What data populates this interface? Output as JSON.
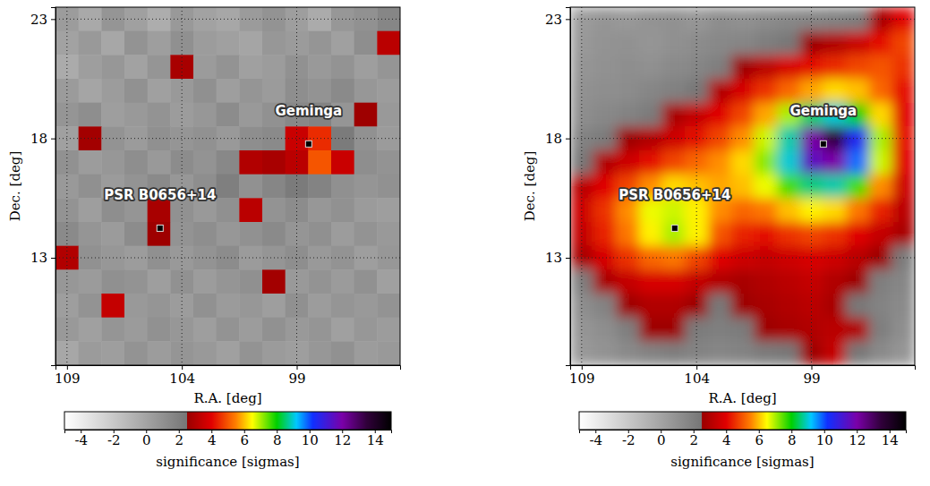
{
  "chart_data": [
    {
      "type": "heatmap",
      "xlabel": "R.A. [deg]",
      "ylabel": "Dec. [deg]",
      "xlim": [
        109.5,
        94.5
      ],
      "ylim": [
        8.5,
        23.5
      ],
      "xticks": [
        109,
        104,
        99
      ],
      "yticks": [
        13,
        18,
        23
      ],
      "grid": true,
      "x": [
        109,
        108,
        107,
        106,
        105,
        104,
        103,
        102,
        101,
        100,
        99,
        98,
        97,
        96,
        95
      ],
      "y": [
        23,
        22,
        21,
        20,
        19,
        18,
        17,
        16,
        15,
        14,
        13,
        12,
        11,
        10,
        9
      ],
      "z": [
        [
          0.4,
          -0.3,
          0.8,
          0.2,
          -0.5,
          0.6,
          0.1,
          -0.2,
          0.5,
          0.9,
          0.3,
          -0.4,
          0.7,
          1.0,
          1.6
        ],
        [
          0.1,
          0.6,
          -0.2,
          0.9,
          0.3,
          1.1,
          0.4,
          0.2,
          -0.1,
          0.7,
          0.5,
          0.8,
          0.2,
          1.2,
          3.2
        ],
        [
          -0.4,
          0.3,
          0.7,
          0.1,
          0.8,
          2.8,
          0.5,
          0.9,
          0.2,
          0.4,
          1.0,
          0.6,
          0.9,
          0.3,
          0.8
        ],
        [
          0.5,
          -0.1,
          0.4,
          1.0,
          0.2,
          0.6,
          1.1,
          0.3,
          0.8,
          0.5,
          1.2,
          0.9,
          1.4,
          0.7,
          0.4
        ],
        [
          0.8,
          1.2,
          0.3,
          0.6,
          0.9,
          0.4,
          0.7,
          1.3,
          0.6,
          1.0,
          1.5,
          1.8,
          0.8,
          2.6,
          0.6
        ],
        [
          0.2,
          2.7,
          0.9,
          0.5,
          1.1,
          0.8,
          1.0,
          0.6,
          1.2,
          1.4,
          3.5,
          4.5,
          2.2,
          1.0,
          0.5
        ],
        [
          1.0,
          0.4,
          0.7,
          1.2,
          0.6,
          1.3,
          0.9,
          1.5,
          3.0,
          2.8,
          3.2,
          5.0,
          3.5,
          1.2,
          0.9
        ],
        [
          0.6,
          1.1,
          0.5,
          0.9,
          1.4,
          0.7,
          1.2,
          2.0,
          1.0,
          1.6,
          2.2,
          1.8,
          1.1,
          0.8,
          1.0
        ],
        [
          0.9,
          0.3,
          1.2,
          0.8,
          2.8,
          1.0,
          0.6,
          1.1,
          3.2,
          0.9,
          1.3,
          0.7,
          1.0,
          0.5,
          0.3
        ],
        [
          1.4,
          0.8,
          0.5,
          1.3,
          2.6,
          0.9,
          1.2,
          0.7,
          1.0,
          1.4,
          0.8,
          1.1,
          0.4,
          0.9,
          0.6
        ],
        [
          3.0,
          1.0,
          0.7,
          0.4,
          1.1,
          0.6,
          0.9,
          1.3,
          0.5,
          0.8,
          1.2,
          0.6,
          0.9,
          0.3,
          0.7
        ],
        [
          0.7,
          0.5,
          1.1,
          0.9,
          0.3,
          1.0,
          0.4,
          0.8,
          1.1,
          2.7,
          0.6,
          0.9,
          0.5,
          1.0,
          0.2
        ],
        [
          0.3,
          0.9,
          3.4,
          0.6,
          0.8,
          0.4,
          1.0,
          0.5,
          0.7,
          0.3,
          1.1,
          0.4,
          0.8,
          0.6,
          0.9
        ],
        [
          0.6,
          0.2,
          0.8,
          0.5,
          1.0,
          0.7,
          0.3,
          0.9,
          0.4,
          1.0,
          0.6,
          0.8,
          0.2,
          0.7,
          0.4
        ],
        [
          -0.2,
          0.5,
          0.3,
          0.9,
          0.4,
          0.8,
          0.6,
          0.2,
          0.9,
          0.5,
          0.3,
          0.7,
          1.0,
          0.4,
          0.6
        ]
      ],
      "annotations": [
        {
          "text": "Geminga",
          "x": 98.48,
          "y": 17.77
        },
        {
          "text": "PSR B0656+14",
          "x": 104.95,
          "y": 14.24
        }
      ],
      "colorbar": {
        "label": "significance [sigmas]",
        "range": [
          -5,
          15
        ],
        "ticks": [
          -4,
          -2,
          0,
          2,
          4,
          6,
          8,
          10,
          12,
          14
        ]
      }
    },
    {
      "type": "heatmap",
      "xlabel": "R.A. [deg]",
      "ylabel": "Dec. [deg]",
      "xlim": [
        109.5,
        94.5
      ],
      "ylim": [
        8.5,
        23.5
      ],
      "xticks": [
        109,
        104,
        99
      ],
      "yticks": [
        13,
        18,
        23
      ],
      "grid": true,
      "x": [
        109,
        108,
        107,
        106,
        105,
        104,
        103,
        102,
        101,
        100,
        99,
        98,
        97,
        96,
        95
      ],
      "y": [
        23,
        22,
        21,
        20,
        19,
        18,
        17,
        16,
        15,
        14,
        13,
        12,
        11,
        10,
        9
      ],
      "z": [
        [
          0.5,
          0.8,
          0.6,
          0.9,
          1.0,
          0.7,
          1.2,
          1.0,
          1.3,
          1.5,
          1.6,
          1.8,
          2.0,
          2.8,
          4.0
        ],
        [
          0.6,
          0.9,
          1.0,
          0.8,
          1.1,
          1.3,
          1.5,
          1.6,
          2.0,
          2.4,
          2.6,
          3.0,
          3.5,
          4.2,
          4.8
        ],
        [
          0.8,
          1.0,
          1.2,
          1.1,
          1.4,
          1.6,
          2.0,
          2.6,
          3.2,
          3.8,
          4.2,
          4.5,
          4.8,
          5.0,
          4.6
        ],
        [
          1.0,
          1.2,
          1.3,
          1.6,
          1.9,
          2.4,
          3.0,
          3.8,
          4.6,
          5.2,
          5.8,
          6.2,
          6.0,
          5.2,
          4.2
        ],
        [
          1.2,
          1.5,
          1.8,
          2.2,
          2.8,
          3.4,
          4.0,
          4.8,
          5.8,
          7.0,
          8.5,
          9.0,
          8.0,
          6.2,
          4.0
        ],
        [
          1.8,
          2.2,
          2.6,
          3.0,
          3.6,
          4.2,
          4.8,
          5.6,
          6.8,
          8.8,
          12.0,
          13.5,
          10.5,
          7.0,
          4.2
        ],
        [
          2.4,
          3.0,
          3.6,
          4.2,
          4.8,
          5.2,
          5.6,
          6.2,
          7.2,
          9.0,
          11.5,
          12.0,
          9.8,
          6.8,
          4.0
        ],
        [
          3.2,
          4.0,
          4.8,
          5.6,
          6.2,
          6.0,
          5.8,
          6.0,
          6.6,
          7.6,
          8.6,
          8.8,
          7.6,
          5.6,
          3.6
        ],
        [
          3.6,
          4.6,
          5.6,
          6.6,
          6.8,
          6.4,
          5.6,
          5.2,
          5.4,
          6.0,
          6.4,
          6.2,
          5.4,
          4.4,
          3.2
        ],
        [
          3.4,
          4.4,
          5.4,
          6.4,
          7.0,
          6.4,
          5.0,
          4.4,
          4.2,
          4.6,
          4.8,
          4.6,
          4.0,
          3.4,
          2.8
        ],
        [
          2.8,
          3.8,
          4.6,
          5.2,
          5.4,
          4.8,
          4.0,
          3.6,
          3.4,
          3.6,
          3.8,
          3.6,
          3.2,
          2.6,
          2.2
        ],
        [
          2.0,
          2.8,
          3.4,
          3.8,
          3.8,
          3.4,
          3.0,
          2.8,
          3.0,
          3.2,
          3.4,
          3.0,
          2.6,
          2.0,
          1.6
        ],
        [
          1.2,
          1.8,
          2.6,
          3.0,
          3.0,
          2.6,
          2.4,
          2.6,
          2.8,
          3.0,
          3.2,
          2.8,
          2.4,
          1.8,
          1.4
        ],
        [
          0.8,
          1.2,
          2.0,
          2.6,
          2.6,
          2.2,
          2.0,
          2.2,
          2.6,
          2.8,
          3.0,
          3.2,
          3.0,
          2.0,
          1.2
        ],
        [
          0.6,
          0.9,
          1.4,
          1.8,
          2.0,
          1.8,
          1.6,
          1.8,
          2.2,
          2.4,
          2.6,
          3.4,
          2.4,
          1.4,
          0.8
        ]
      ],
      "annotations": [
        {
          "text": "Geminga",
          "x": 98.48,
          "y": 17.77
        },
        {
          "text": "PSR B0656+14",
          "x": 104.95,
          "y": 14.24
        }
      ],
      "colorbar": {
        "label": "significance [sigmas]",
        "range": [
          -5,
          15
        ],
        "ticks": [
          -4,
          -2,
          0,
          2,
          4,
          6,
          8,
          10,
          12,
          14
        ]
      }
    }
  ]
}
